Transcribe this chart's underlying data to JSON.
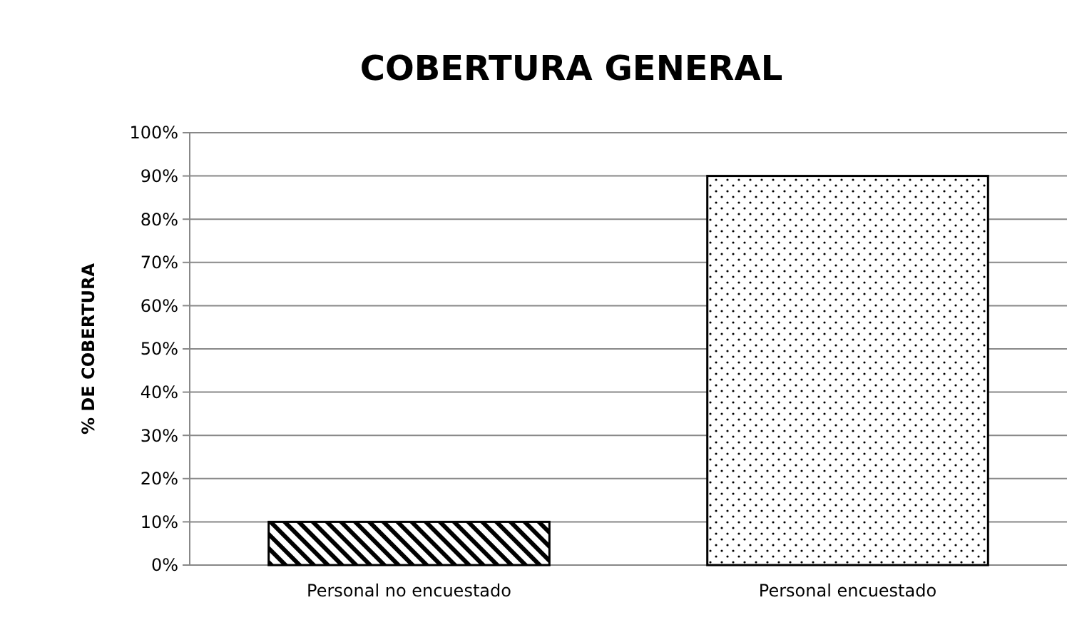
{
  "chart_data": {
    "type": "bar",
    "title": "COBERTURA GENERAL",
    "ylabel": "% DE COBERTURA",
    "categories": [
      "Personal no encuestado",
      "Personal encuestado"
    ],
    "values": [
      10,
      90
    ],
    "colors": [
      "#000000",
      "#000000"
    ],
    "ylim": [
      0,
      100
    ],
    "yticks": [
      {
        "value": 0,
        "label": "0%"
      },
      {
        "value": 10,
        "label": "10%"
      },
      {
        "value": 20,
        "label": "20%"
      },
      {
        "value": 30,
        "label": "30%"
      },
      {
        "value": 40,
        "label": "40%"
      },
      {
        "value": 50,
        "label": "50%"
      },
      {
        "value": 60,
        "label": "60%"
      },
      {
        "value": 70,
        "label": "70%"
      },
      {
        "value": 80,
        "label": "80%"
      },
      {
        "value": 90,
        "label": "90%"
      },
      {
        "value": 100,
        "label": "100%"
      }
    ],
    "grid": "y"
  }
}
